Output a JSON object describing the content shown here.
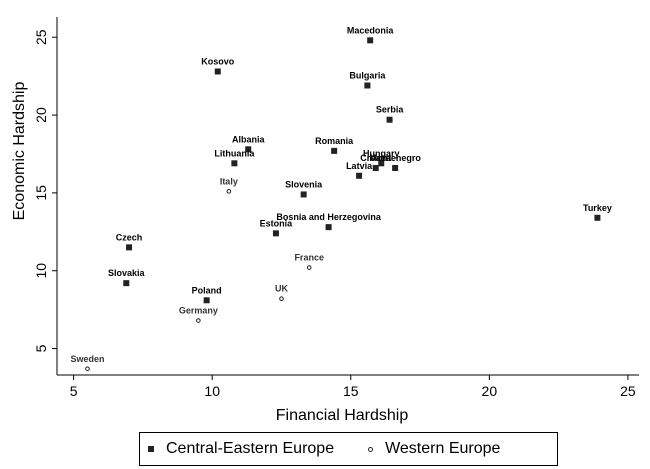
{
  "chart_data": {
    "type": "scatter",
    "xlabel": "Financial Hardship",
    "ylabel": "Economic Hardship",
    "xlim": [
      4.4,
      25.4
    ],
    "ylim": [
      3.3,
      26.3
    ],
    "xticks": [
      5,
      10,
      15,
      20,
      25
    ],
    "yticks": [
      5,
      10,
      15,
      20,
      25
    ],
    "grid": false,
    "legend_position": "bottom",
    "series": [
      {
        "name": "Central-Eastern Europe",
        "marker": "filled-square",
        "color": "#222222",
        "points": [
          {
            "label": "Macedonia",
            "x": 15.7,
            "y": 24.8
          },
          {
            "label": "Kosovo",
            "x": 10.2,
            "y": 22.8
          },
          {
            "label": "Bulgaria",
            "x": 15.6,
            "y": 21.9
          },
          {
            "label": "Serbia",
            "x": 16.4,
            "y": 19.7
          },
          {
            "label": "Albania",
            "x": 11.3,
            "y": 17.8
          },
          {
            "label": "Romania",
            "x": 14.4,
            "y": 17.7
          },
          {
            "label": "Lithuania",
            "x": 10.8,
            "y": 16.9
          },
          {
            "label": "Hungary",
            "x": 16.1,
            "y": 16.9
          },
          {
            "label": "Croatia",
            "x": 15.9,
            "y": 16.6
          },
          {
            "label": "Montenegro",
            "x": 16.6,
            "y": 16.6
          },
          {
            "label": "Latvia",
            "x": 15.3,
            "y": 16.1
          },
          {
            "label": "Slovenia",
            "x": 13.3,
            "y": 14.9
          },
          {
            "label": "Turkey",
            "x": 23.9,
            "y": 13.4
          },
          {
            "label": "Bosnia and Herzegovina",
            "x": 14.2,
            "y": 12.8
          },
          {
            "label": "Estonia",
            "x": 12.3,
            "y": 12.4
          },
          {
            "label": "Czech",
            "x": 7.0,
            "y": 11.5
          },
          {
            "label": "Slovakia",
            "x": 6.9,
            "y": 9.2
          },
          {
            "label": "Poland",
            "x": 9.8,
            "y": 8.1
          }
        ]
      },
      {
        "name": "Western Europe",
        "marker": "hollow-circle",
        "color": "#222222",
        "points": [
          {
            "label": "Italy",
            "x": 10.6,
            "y": 15.1
          },
          {
            "label": "France",
            "x": 13.5,
            "y": 10.2
          },
          {
            "label": "UK",
            "x": 12.5,
            "y": 8.2
          },
          {
            "label": "Germany",
            "x": 9.5,
            "y": 6.8
          },
          {
            "label": "Sweden",
            "x": 5.5,
            "y": 3.7
          }
        ]
      }
    ]
  }
}
